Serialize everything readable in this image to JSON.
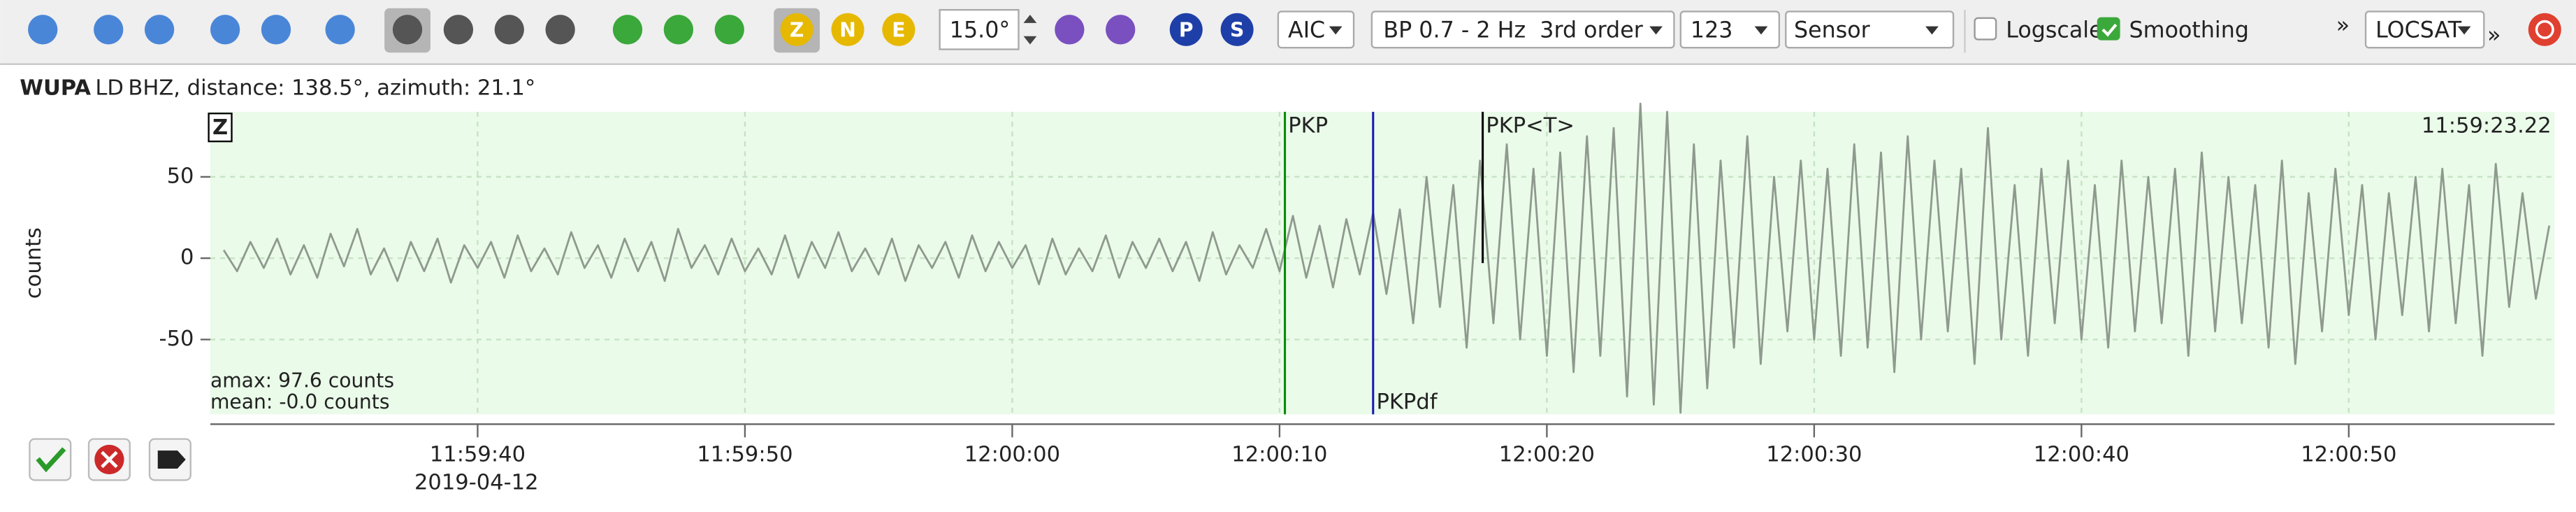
{
  "toolbar": {
    "spin_value": "15.0°",
    "picker": "AIC",
    "filter": "BP 0.7 - 2 Hz  3rd order",
    "numbers": "123",
    "unit": "Sensor",
    "logscale": "Logscale",
    "logscale_checked": false,
    "smoothing": "Smoothing",
    "smoothing_checked": true,
    "more": "»",
    "locator": "LOCSAT",
    "more2": "»",
    "component_buttons": [
      "Z",
      "N",
      "E"
    ],
    "phase_buttons": [
      "P",
      "S"
    ]
  },
  "header": {
    "station": "WUPA",
    "network": "LD",
    "info": "BHZ, distance: 138.5°, azimuth: 21.1°"
  },
  "chart_data": {
    "type": "line",
    "component": "Z",
    "y_label": "counts",
    "time_label": "11:59:23.22",
    "date_label": "2019-04-12",
    "stats": [
      "amax: 97.6 counts",
      "mean: -0.0 counts"
    ],
    "color": "#8f9a8f",
    "grid": true,
    "xlim": [
      30,
      117.7
    ],
    "ylim": [
      -96,
      90
    ],
    "yticks": [
      50,
      0,
      -50
    ],
    "xticks": [
      {
        "value": 40,
        "label": "11:59:40"
      },
      {
        "value": 50,
        "label": "11:59:50"
      },
      {
        "value": 60,
        "label": "12:00:00"
      },
      {
        "value": 70,
        "label": "12:00:10"
      },
      {
        "value": 80,
        "label": "12:00:20"
      },
      {
        "value": 90,
        "label": "12:00:30"
      },
      {
        "value": 100,
        "label": "12:00:40"
      },
      {
        "value": 110,
        "label": "12:00:50"
      }
    ],
    "picks": [
      {
        "label": "PKP",
        "time": 70.2,
        "color": "#008c00"
      },
      {
        "label": "PKPdf",
        "time": 73.5,
        "color": "#1a1ab0"
      },
      {
        "label": "PKP<T>",
        "time": 77.6,
        "color": "#000000"
      }
    ],
    "x": [
      30.5,
      31,
      31.5,
      32,
      32.5,
      33,
      33.5,
      34,
      34.5,
      35,
      35.5,
      36,
      36.5,
      37,
      37.5,
      38,
      38.5,
      39,
      39.5,
      40,
      40.5,
      41,
      41.5,
      42,
      42.5,
      43,
      43.5,
      44,
      44.5,
      45,
      45.5,
      46,
      46.5,
      47,
      47.5,
      48,
      48.5,
      49,
      49.5,
      50,
      50.5,
      51,
      51.5,
      52,
      52.5,
      53,
      53.5,
      54,
      54.5,
      55,
      55.5,
      56,
      56.5,
      57,
      57.5,
      58,
      58.5,
      59,
      59.5,
      60,
      60.5,
      61,
      61.5,
      62,
      62.5,
      63,
      63.5,
      64,
      64.5,
      65,
      65.5,
      66,
      66.5,
      67,
      67.5,
      68,
      68.5,
      69,
      69.5,
      70,
      70.5,
      71,
      71.5,
      72,
      72.5,
      73,
      73.5,
      74,
      74.5,
      75,
      75.5,
      76,
      76.5,
      77,
      77.5,
      78,
      78.5,
      79,
      79.5,
      80,
      80.5,
      81,
      81.5,
      82,
      82.5,
      83,
      83.5,
      84,
      84.5,
      85,
      85.5,
      86,
      86.5,
      87,
      87.5,
      88,
      88.5,
      89,
      89.5,
      90,
      90.5,
      91,
      91.5,
      92,
      92.5,
      93,
      93.5,
      94,
      94.5,
      95,
      95.5,
      96,
      96.5,
      97,
      97.5,
      98,
      98.5,
      99,
      99.5,
      100,
      100.5,
      101,
      101.5,
      102,
      102.5,
      103,
      103.5,
      104,
      104.5,
      105,
      105.5,
      106,
      106.5,
      107,
      107.5,
      108,
      108.5,
      109,
      109.5,
      110,
      110.5,
      111,
      111.5,
      112,
      112.5,
      113,
      113.5,
      114,
      114.5,
      115,
      115.5,
      116,
      116.5,
      117,
      117.5
    ],
    "values": [
      5,
      -8,
      10,
      -6,
      12,
      -10,
      8,
      -12,
      15,
      -5,
      18,
      -10,
      6,
      -14,
      10,
      -8,
      12,
      -15,
      8,
      -6,
      10,
      -12,
      14,
      -8,
      6,
      -10,
      16,
      -6,
      8,
      -12,
      12,
      -8,
      10,
      -14,
      18,
      -6,
      8,
      -10,
      12,
      -8,
      6,
      -10,
      14,
      -12,
      10,
      -6,
      16,
      -8,
      6,
      -10,
      12,
      -14,
      8,
      -6,
      10,
      -12,
      14,
      -8,
      10,
      -6,
      8,
      -16,
      12,
      -10,
      6,
      -8,
      14,
      -12,
      10,
      -6,
      12,
      -8,
      10,
      -14,
      16,
      -10,
      8,
      -6,
      18,
      -8,
      26,
      -12,
      20,
      -18,
      24,
      -10,
      28,
      -22,
      30,
      -40,
      50,
      -30,
      45,
      -55,
      60,
      -40,
      70,
      -50,
      55,
      -60,
      65,
      -70,
      75,
      -60,
      80,
      -85,
      95,
      -90,
      90,
      -95,
      70,
      -80,
      60,
      -55,
      75,
      -65,
      50,
      -45,
      60,
      -50,
      55,
      -60,
      70,
      -55,
      65,
      -70,
      75,
      -50,
      60,
      -45,
      55,
      -65,
      80,
      -50,
      45,
      -60,
      55,
      -40,
      60,
      -50,
      45,
      -55,
      60,
      -45,
      50,
      -40,
      55,
      -60,
      65,
      -45,
      50,
      -40,
      45,
      -55,
      60,
      -65,
      40,
      -45,
      55,
      -35,
      45,
      -50,
      40,
      -35,
      50,
      -45,
      55,
      -40,
      45,
      -60,
      58,
      -30,
      40,
      -25,
      20
    ]
  }
}
